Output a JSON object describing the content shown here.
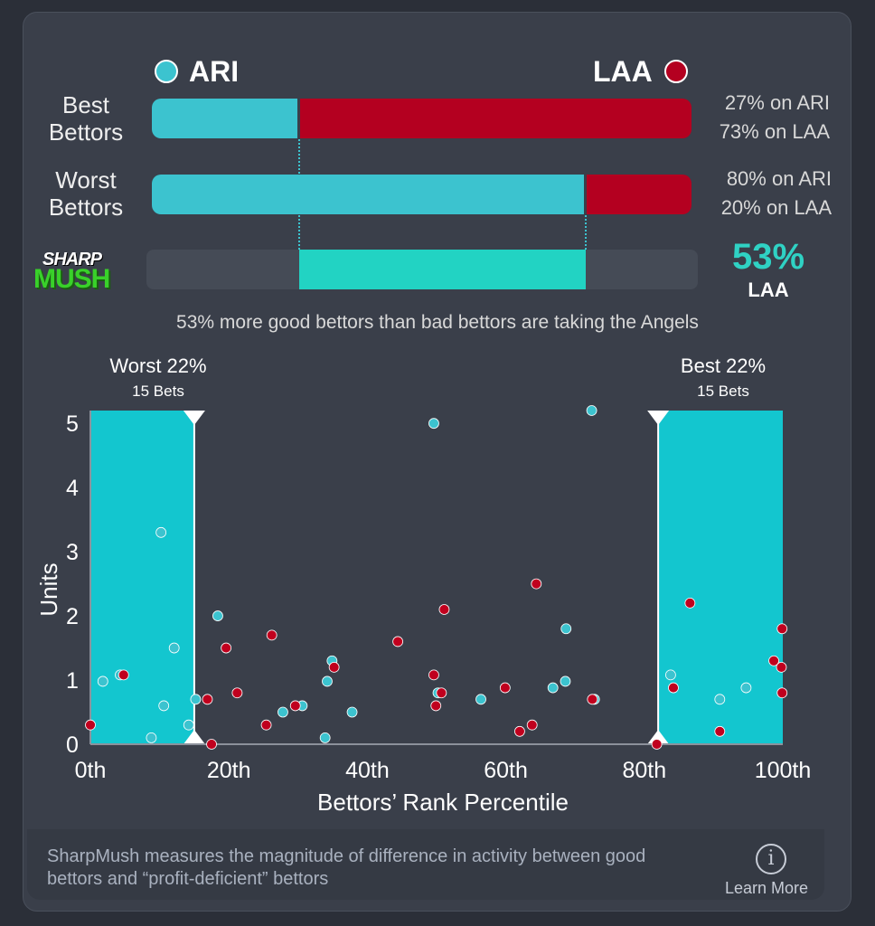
{
  "teams": {
    "left": {
      "abbr": "ARI",
      "color": "#3cc3cf"
    },
    "right": {
      "abbr": "LAA",
      "color": "#b40020"
    }
  },
  "rows": {
    "best": {
      "label_line1": "Best",
      "label_line2": "Bettors",
      "ari_pct": 27,
      "laa_pct": 73,
      "ari_text": "27% on ARI",
      "laa_text": "73% on LAA"
    },
    "worst": {
      "label_line1": "Worst",
      "label_line2": "Bettors",
      "ari_pct": 80,
      "laa_pct": 20,
      "ari_text": "80% on ARI",
      "laa_text": "20% on LAA"
    }
  },
  "sharpmush": {
    "logo_line1": "SHARP",
    "logo_line2": "MUSH",
    "value": "53%",
    "team": "LAA",
    "range_start_pct": 27,
    "range_end_pct": 80,
    "bar_color": "#22d3c3",
    "caption": "53% more good bettors than bad bettors are taking the Angels"
  },
  "chart_data": {
    "type": "scatter",
    "xlabel": "Bettors’ Rank Percentile",
    "ylabel": "Units",
    "xlim": [
      0,
      100
    ],
    "ylim": [
      0,
      5.2
    ],
    "x_ticks": [
      0,
      20,
      40,
      60,
      80,
      100
    ],
    "x_tick_labels": [
      "0th",
      "20th",
      "40th",
      "60th",
      "80th",
      "100th"
    ],
    "y_ticks": [
      0,
      1,
      2,
      3,
      4,
      5
    ],
    "y_tick_labels": [
      "0",
      "1",
      "2",
      "3",
      "4",
      "5"
    ],
    "grid": false,
    "regions": [
      {
        "name": "worst",
        "x_start": 0,
        "x_end": 15,
        "title": "Worst 22%",
        "subtitle": "15 Bets"
      },
      {
        "name": "best",
        "x_start": 82,
        "x_end": 100,
        "title": "Best 22%",
        "subtitle": "15 Bets"
      }
    ],
    "series": [
      {
        "name": "ARI",
        "color": "#3cc3cf",
        "points": [
          [
            1.8,
            0.98
          ],
          [
            4.3,
            1.08
          ],
          [
            8.8,
            0.1
          ],
          [
            10.2,
            3.3
          ],
          [
            10.6,
            0.6
          ],
          [
            12.1,
            1.5
          ],
          [
            14.2,
            0.3
          ],
          [
            15.2,
            0.7
          ],
          [
            18.4,
            2.0
          ],
          [
            27.8,
            0.5
          ],
          [
            30.6,
            0.6
          ],
          [
            33.9,
            0.1
          ],
          [
            34.2,
            0.98
          ],
          [
            34.9,
            1.3
          ],
          [
            37.8,
            0.5
          ],
          [
            49.6,
            5.0
          ],
          [
            50.2,
            0.8
          ],
          [
            56.4,
            0.7
          ],
          [
            66.8,
            0.88
          ],
          [
            68.6,
            0.98
          ],
          [
            68.7,
            1.8
          ],
          [
            72.4,
            5.2
          ],
          [
            72.8,
            0.7
          ],
          [
            83.8,
            1.08
          ],
          [
            90.9,
            0.7
          ],
          [
            94.7,
            0.88
          ]
        ]
      },
      {
        "name": "LAA",
        "color": "#c0001e",
        "points": [
          [
            0.0,
            0.3
          ],
          [
            4.8,
            1.08
          ],
          [
            16.9,
            0.7
          ],
          [
            17.5,
            0.0
          ],
          [
            19.6,
            1.5
          ],
          [
            21.2,
            0.8
          ],
          [
            25.4,
            0.3
          ],
          [
            26.2,
            1.7
          ],
          [
            29.6,
            0.6
          ],
          [
            35.2,
            1.2
          ],
          [
            44.4,
            1.6
          ],
          [
            49.6,
            1.08
          ],
          [
            49.9,
            0.6
          ],
          [
            50.7,
            0.8
          ],
          [
            51.1,
            2.1
          ],
          [
            59.9,
            0.88
          ],
          [
            62.0,
            0.2
          ],
          [
            63.8,
            0.3
          ],
          [
            64.4,
            2.5
          ],
          [
            72.5,
            0.7
          ],
          [
            81.8,
            0.0
          ],
          [
            84.2,
            0.88
          ],
          [
            86.6,
            2.2
          ],
          [
            90.9,
            0.2
          ],
          [
            98.7,
            1.3
          ],
          [
            99.8,
            1.2
          ],
          [
            99.9,
            1.8
          ],
          [
            99.9,
            0.8
          ]
        ]
      }
    ]
  },
  "footer": {
    "text": "SharpMush measures the magnitude of difference in activity between good bettors and “profit-deficient” bettors",
    "info_glyph": "i",
    "learn_more": "Learn More"
  }
}
